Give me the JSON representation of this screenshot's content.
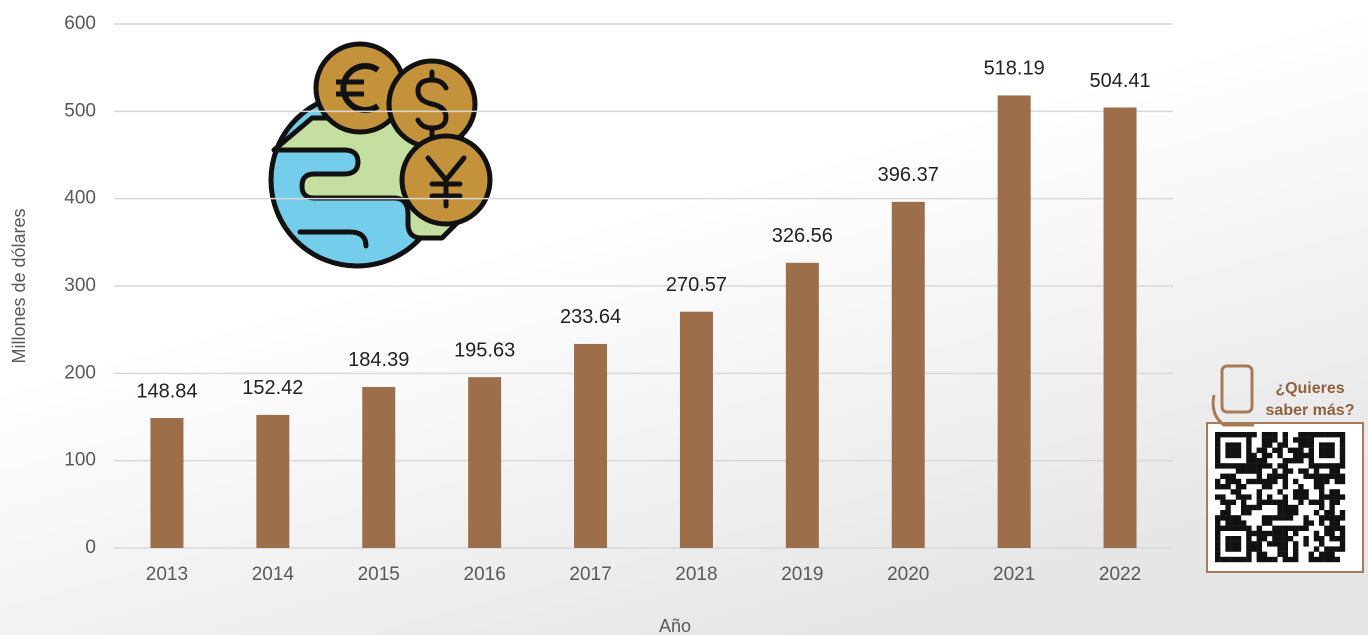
{
  "chart_data": {
    "type": "bar",
    "x_label": "Año",
    "y_label": "Millones de dólares",
    "categories": [
      "2013",
      "2014",
      "2015",
      "2016",
      "2017",
      "2018",
      "2019",
      "2020",
      "2021",
      "2022"
    ],
    "values": [
      148.84,
      152.42,
      184.39,
      195.63,
      233.64,
      270.57,
      326.56,
      396.37,
      518.19,
      504.41
    ],
    "color": "#9c6e4a",
    "ylim": [
      0,
      600
    ],
    "yticks": [
      0,
      100,
      200,
      300,
      400,
      500,
      600
    ],
    "grid": true,
    "data_labels": true
  },
  "qr_panel": {
    "lines": [
      "¿Quieres",
      "saber más?"
    ]
  }
}
